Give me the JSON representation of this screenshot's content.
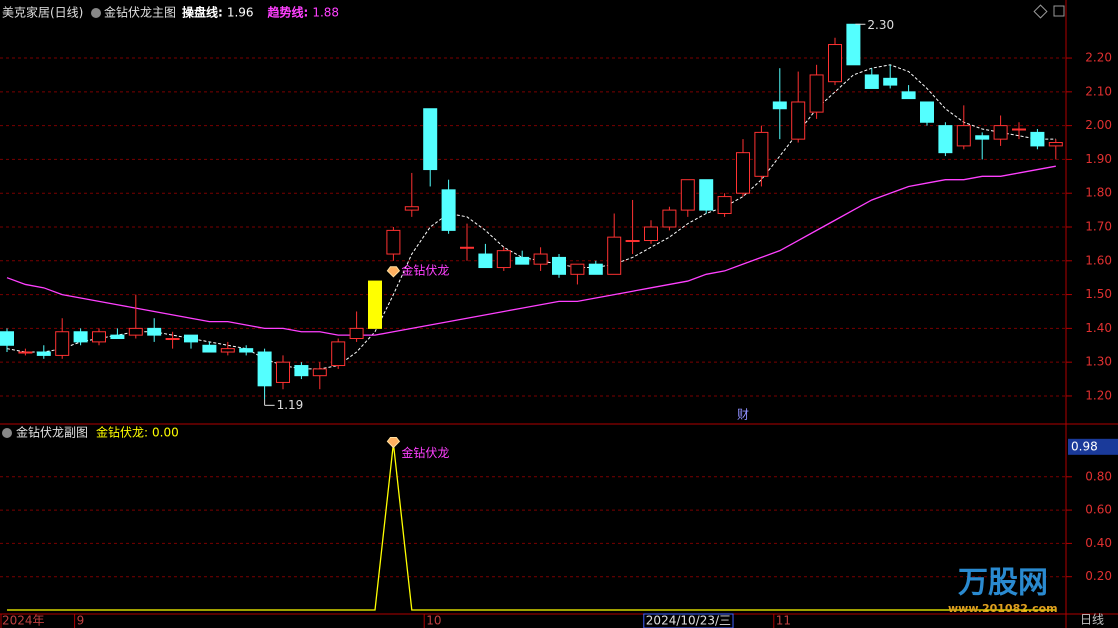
{
  "chart_data": [
    {
      "type": "candlestick",
      "title": "美克家居(日线)",
      "indicator": "金钻伏龙主图",
      "open": [
        1.39,
        1.33,
        1.33,
        1.32,
        1.39,
        1.36,
        1.38,
        1.38,
        1.4,
        1.37,
        1.38,
        1.35,
        1.33,
        1.34,
        1.33,
        1.24,
        1.29,
        1.26,
        1.29,
        1.37,
        1.4,
        1.62,
        1.75,
        2.05,
        1.81,
        1.64,
        1.62,
        1.58,
        1.61,
        1.59,
        1.61,
        1.56,
        1.59,
        1.56,
        1.66,
        1.66,
        1.7,
        1.75,
        1.84,
        1.74,
        1.8,
        1.85,
        2.07,
        1.96,
        2.04,
        2.13,
        2.3,
        2.15,
        2.14,
        2.1,
        2.07,
        2.0,
        1.94,
        1.97,
        1.96,
        1.99,
        1.98,
        1.94
      ],
      "high": [
        1.4,
        1.34,
        1.35,
        1.43,
        1.4,
        1.4,
        1.4,
        1.5,
        1.43,
        1.39,
        1.38,
        1.36,
        1.36,
        1.35,
        1.34,
        1.32,
        1.3,
        1.3,
        1.37,
        1.45,
        1.54,
        1.7,
        1.86,
        2.05,
        1.84,
        1.71,
        1.65,
        1.64,
        1.63,
        1.64,
        1.62,
        1.58,
        1.6,
        1.74,
        1.78,
        1.72,
        1.76,
        1.84,
        1.84,
        1.8,
        1.96,
        2.0,
        2.17,
        2.16,
        2.18,
        2.26,
        2.3,
        2.17,
        2.18,
        2.12,
        2.07,
        2.01,
        2.06,
        1.98,
        2.03,
        2.01,
        1.99,
        1.96
      ],
      "low": [
        1.33,
        1.32,
        1.31,
        1.31,
        1.35,
        1.35,
        1.37,
        1.37,
        1.36,
        1.34,
        1.34,
        1.33,
        1.32,
        1.32,
        1.19,
        1.22,
        1.25,
        1.22,
        1.28,
        1.36,
        1.4,
        1.6,
        1.73,
        1.82,
        1.68,
        1.6,
        1.58,
        1.57,
        1.59,
        1.57,
        1.55,
        1.53,
        1.56,
        1.56,
        1.62,
        1.65,
        1.69,
        1.73,
        1.74,
        1.73,
        1.79,
        1.82,
        1.96,
        1.95,
        2.02,
        2.12,
        2.18,
        2.11,
        2.11,
        2.08,
        2.0,
        1.91,
        1.93,
        1.9,
        1.94,
        1.96,
        1.93,
        1.9
      ],
      "close": [
        1.35,
        1.33,
        1.32,
        1.39,
        1.36,
        1.39,
        1.37,
        1.4,
        1.38,
        1.37,
        1.36,
        1.33,
        1.34,
        1.33,
        1.23,
        1.3,
        1.26,
        1.28,
        1.36,
        1.4,
        1.54,
        1.69,
        1.76,
        1.87,
        1.69,
        1.64,
        1.58,
        1.63,
        1.59,
        1.62,
        1.56,
        1.59,
        1.56,
        1.67,
        1.66,
        1.7,
        1.75,
        1.84,
        1.75,
        1.79,
        1.92,
        1.98,
        2.05,
        2.07,
        2.15,
        2.24,
        2.18,
        2.11,
        2.12,
        2.08,
        2.01,
        1.92,
        2.0,
        1.96,
        2.0,
        1.99,
        1.94,
        1.95
      ],
      "up_color": "#ff3232",
      "down_color": "#54ffff",
      "highlight": {
        "index": 20,
        "color": "#ffff00"
      },
      "series": [
        {
          "name": "操盘线:",
          "color": "#ffffff",
          "dashed": true,
          "values": [
            1.34,
            1.33,
            1.33,
            1.34,
            1.36,
            1.37,
            1.38,
            1.39,
            1.39,
            1.38,
            1.37,
            1.36,
            1.35,
            1.34,
            1.31,
            1.29,
            1.28,
            1.28,
            1.29,
            1.33,
            1.39,
            1.5,
            1.62,
            1.7,
            1.74,
            1.73,
            1.69,
            1.64,
            1.61,
            1.6,
            1.59,
            1.58,
            1.58,
            1.59,
            1.61,
            1.64,
            1.67,
            1.71,
            1.74,
            1.76,
            1.79,
            1.84,
            1.91,
            1.98,
            2.05,
            2.1,
            2.15,
            2.17,
            2.18,
            2.16,
            2.11,
            2.05,
            2.01,
            1.99,
            1.98,
            1.97,
            1.96,
            1.96
          ]
        },
        {
          "name": "趋势线:",
          "color": "#ff40ff",
          "values": [
            1.55,
            1.53,
            1.52,
            1.5,
            1.49,
            1.48,
            1.47,
            1.46,
            1.45,
            1.44,
            1.43,
            1.42,
            1.42,
            1.41,
            1.4,
            1.4,
            1.39,
            1.39,
            1.38,
            1.38,
            1.38,
            1.39,
            1.4,
            1.41,
            1.42,
            1.43,
            1.44,
            1.45,
            1.46,
            1.47,
            1.48,
            1.48,
            1.49,
            1.5,
            1.51,
            1.52,
            1.53,
            1.54,
            1.56,
            1.57,
            1.59,
            1.61,
            1.63,
            1.66,
            1.69,
            1.72,
            1.75,
            1.78,
            1.8,
            1.82,
            1.83,
            1.84,
            1.84,
            1.85,
            1.85,
            1.86,
            1.87,
            1.88
          ]
        }
      ],
      "ylim": [
        1.117,
        2.357
      ],
      "yticks": [
        {
          "value": 1.2,
          "label": "1.20"
        },
        {
          "value": 1.3,
          "label": "1.30"
        },
        {
          "value": 1.4,
          "label": "1.40"
        },
        {
          "value": 1.5,
          "label": "1.50"
        },
        {
          "value": 1.6,
          "label": "1.60"
        },
        {
          "value": 1.7,
          "label": "1.70"
        },
        {
          "value": 1.8,
          "label": "1.80"
        },
        {
          "value": 1.9,
          "label": "1.90"
        },
        {
          "value": 2.0,
          "label": "2.00"
        },
        {
          "value": 2.1,
          "label": "2.10"
        },
        {
          "value": 2.2,
          "label": "2.20"
        }
      ],
      "grid": true,
      "annotations": [
        {
          "index": 46,
          "label": "2.30",
          "at": "high"
        },
        {
          "index": 14,
          "label": "1.19",
          "at": "low"
        },
        {
          "index": 21,
          "label": "金钻伏龙",
          "at": "low",
          "marker": "diamond"
        },
        {
          "index": 40,
          "label": "财",
          "at": "bottom"
        }
      ]
    },
    {
      "type": "line",
      "title": "金钻伏龙副图",
      "series": [
        {
          "name": "金钻伏龙:",
          "color": "#ffff00",
          "legend_label": "0.00",
          "values": [
            0,
            0,
            0,
            0,
            0,
            0,
            0,
            0,
            0,
            0,
            0,
            0,
            0,
            0,
            0,
            0,
            0,
            0,
            0,
            0,
            0,
            1,
            0,
            0,
            0,
            0,
            0,
            0,
            0,
            0,
            0,
            0,
            0,
            0,
            0,
            0,
            0,
            0,
            0,
            0,
            0,
            0,
            0,
            0,
            0,
            0,
            0,
            0,
            0,
            0,
            0,
            0,
            0,
            0,
            0,
            0,
            0,
            0
          ]
        }
      ],
      "ylim": [
        0,
        1.093
      ],
      "yticks": [
        {
          "value": 0.2,
          "label": "0.20"
        },
        {
          "value": 0.4,
          "label": "0.40"
        },
        {
          "value": 0.6,
          "label": "0.60"
        },
        {
          "value": 0.8,
          "label": "0.80"
        }
      ],
      "cursor": {
        "value": 0.98,
        "label": "0.98"
      },
      "grid": true,
      "annotations": [
        {
          "index": 21,
          "label": "金钻伏龙",
          "marker": "diamond"
        }
      ],
      "categories": [
        "2024年",
        null,
        null,
        null,
        "9",
        null,
        null,
        null,
        null,
        null,
        null,
        null,
        null,
        null,
        null,
        null,
        null,
        null,
        null,
        null,
        null,
        null,
        null,
        "10",
        null,
        null,
        null,
        null,
        null,
        null,
        null,
        null,
        null,
        null,
        null,
        null,
        null,
        "2024/10/23/三",
        null,
        null,
        null,
        null,
        "11",
        null,
        null,
        null,
        null,
        null,
        null,
        null,
        null,
        null,
        null,
        null,
        null,
        null,
        null,
        null
      ],
      "highlight_category": 37,
      "period_label": "日线"
    }
  ],
  "watermark": {
    "brand": "万股网",
    "url": "www.201082.com"
  }
}
